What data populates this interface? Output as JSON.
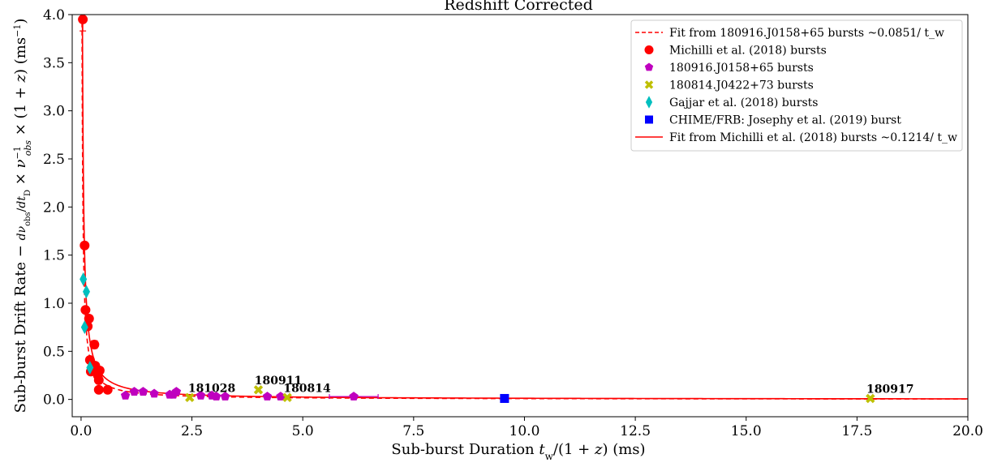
{
  "chart_data": {
    "type": "scatter",
    "title": "Redshift Corrected",
    "xlabel": "Sub-burst Duration t_w/(1+z) (ms)",
    "ylabel": "Sub-burst Drift Rate  −(dν_obs/dt_D) × ν_obs^{-1} × (1+z) (ms^{-1})",
    "xlim": [
      -0.2,
      20.0
    ],
    "ylim": [
      -0.18,
      4.0
    ],
    "xticks": [
      "0.0",
      "2.5",
      "5.0",
      "7.5",
      "10.0",
      "12.5",
      "15.0",
      "17.5",
      "20.0"
    ],
    "yticks": [
      "0.0",
      "0.5",
      "1.0",
      "1.5",
      "2.0",
      "2.5",
      "3.0",
      "3.5",
      "4.0"
    ],
    "grid": false,
    "legend_position": "top-right",
    "legend": [
      {
        "label": "Fit from 180916.J0158+65 bursts ~0.0851/ t_w",
        "kind": "dashed-line",
        "color": "#ff0000"
      },
      {
        "label": "Michilli et al. (2018) bursts",
        "kind": "circle",
        "color": "#ff0000"
      },
      {
        "label": "180916.J0158+65 bursts",
        "kind": "pentagon",
        "color": "#bf00bf"
      },
      {
        "label": "180814.J0422+73 bursts",
        "kind": "x",
        "color": "#bfbf00"
      },
      {
        "label": "Gajjar et al. (2018) bursts",
        "kind": "diamond",
        "color": "#00bfbf"
      },
      {
        "label": "CHIME/FRB: Josephy et al. (2019) burst",
        "kind": "square",
        "color": "#0000ff"
      },
      {
        "label": "Fit from Michilli et al. (2018) bursts ~0.1214/ t_w",
        "kind": "solid-line",
        "color": "#ff0000"
      }
    ],
    "fits": [
      {
        "name": "Fit from 180916.J0158+65 bursts ~0.0851/ t_w",
        "coefficient": 0.0851,
        "style": "dashed",
        "color": "#ff0000"
      },
      {
        "name": "Fit from Michilli et al. (2018) bursts ~0.1214/ t_w",
        "coefficient": 0.1214,
        "style": "solid",
        "color": "#ff0000"
      }
    ],
    "series": [
      {
        "name": "Michilli et al. (2018) bursts",
        "marker": "circle",
        "color": "#ff0000",
        "x": [
          0.04,
          0.08,
          0.1,
          0.15,
          0.18,
          0.2,
          0.22,
          0.25,
          0.3,
          0.32,
          0.35,
          0.38,
          0.4,
          0.42,
          0.4,
          0.6
        ],
        "y": [
          3.95,
          1.6,
          0.93,
          0.76,
          0.84,
          0.41,
          0.29,
          0.3,
          0.57,
          0.35,
          0.3,
          0.25,
          0.2,
          0.3,
          0.1,
          0.1
        ],
        "yerr": [
          0.12,
          0.0,
          0.0,
          0.0,
          0.0,
          0.0,
          0.0,
          0.0,
          0.04,
          0.0,
          0.0,
          0.0,
          0.0,
          0.0,
          0.0,
          0.0
        ]
      },
      {
        "name": "180916.J0158+65 bursts",
        "marker": "pentagon",
        "color": "#bf00bf",
        "x": [
          1.0,
          1.2,
          1.4,
          1.65,
          2.0,
          2.08,
          2.15,
          2.7,
          2.95,
          3.05,
          3.25,
          4.2,
          4.5,
          6.15
        ],
        "y": [
          0.04,
          0.08,
          0.08,
          0.06,
          0.05,
          0.05,
          0.08,
          0.04,
          0.04,
          0.03,
          0.03,
          0.03,
          0.03,
          0.03
        ],
        "xerr": [
          0.0,
          0.0,
          0.0,
          0.0,
          0.0,
          0.0,
          0.0,
          0.0,
          0.0,
          0.0,
          0.0,
          0.0,
          0.0,
          0.55
        ]
      },
      {
        "name": "180814.J0422+73 bursts",
        "marker": "x",
        "color": "#bfbf00",
        "x": [
          2.45,
          4.0,
          4.65,
          17.8
        ],
        "y": [
          0.02,
          0.1,
          0.02,
          0.01
        ]
      },
      {
        "name": "Gajjar et al. (2018) bursts",
        "marker": "diamond",
        "color": "#00bfbf",
        "x": [
          0.05,
          0.08,
          0.12,
          0.2
        ],
        "y": [
          1.25,
          0.75,
          1.12,
          0.33
        ]
      },
      {
        "name": "CHIME/FRB: Josephy et al. (2019) burst",
        "marker": "square",
        "color": "#0000ff",
        "x": [
          9.55
        ],
        "y": [
          0.01
        ]
      }
    ],
    "annotations": [
      {
        "text": "181028",
        "x": 2.45,
        "y": 0.02
      },
      {
        "text": "180911",
        "x": 3.95,
        "y": 0.1
      },
      {
        "text": "180814",
        "x": 4.6,
        "y": 0.02
      },
      {
        "text": "180917",
        "x": 17.75,
        "y": 0.01
      }
    ]
  }
}
